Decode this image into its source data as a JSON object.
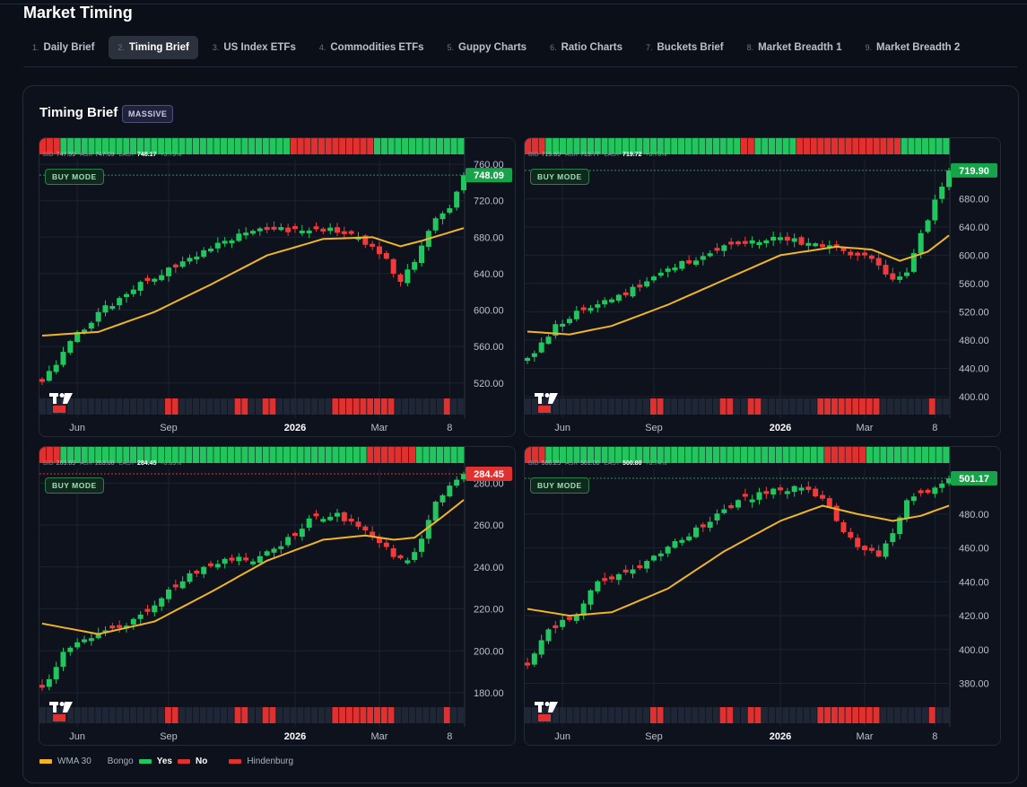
{
  "app": {
    "title": "Market Timing"
  },
  "tabs": [
    {
      "num": "1.",
      "label": "Daily Brief",
      "active": false
    },
    {
      "num": "2.",
      "label": "Timing Brief",
      "active": true
    },
    {
      "num": "3.",
      "label": "US Index ETFs",
      "active": false
    },
    {
      "num": "4.",
      "label": "Commodities ETFs",
      "active": false
    },
    {
      "num": "5.",
      "label": "Guppy Charts",
      "active": false
    },
    {
      "num": "6.",
      "label": "Ratio Charts",
      "active": false
    },
    {
      "num": "7.",
      "label": "Buckets Brief",
      "active": false
    },
    {
      "num": "8.",
      "label": "Market Breadth 1",
      "active": false
    },
    {
      "num": "9.",
      "label": "Market Breadth 2",
      "active": false
    }
  ],
  "panel": {
    "title": "Timing Brief",
    "badge": "MASSIVE"
  },
  "colors": {
    "up": "#22c55e",
    "down": "#ef3b3b",
    "wma": "#f0b429",
    "bongo_yes": "#22c55e",
    "bongo_no": "#e03131",
    "hindenburg": "#e03131",
    "strip_empty": "#1f2636"
  },
  "icons": {
    "tv_logo": "tradingview-logo-icon"
  },
  "legend": {
    "wma_label": "WMA 30",
    "bongo_label": "Bongo",
    "yes_label": "Yes",
    "no_label": "No",
    "hindenburg_label": "Hindenburg"
  },
  "chart_data": [
    {
      "type": "candlestick",
      "mode": "BUY MODE",
      "quote": {
        "bid_label": "BID",
        "bid": "747.59",
        "ask_label": "ASK",
        "ask": "747.69",
        "last_label": "LAST",
        "last": "748.17",
        "change": "+0.79%"
      },
      "last_price": 748.09,
      "last_price_label": "748.09",
      "last_price_color": "green",
      "ylim": [
        505,
        765
      ],
      "y_ticks": [
        "760.00",
        "720.00",
        "680.00",
        "640.00",
        "600.00",
        "560.00",
        "520.00"
      ],
      "x_ticks": [
        {
          "label": "Jun",
          "i": 5
        },
        {
          "label": "Sep",
          "i": 18
        },
        {
          "label": "2026",
          "i": 36,
          "bold": true
        },
        {
          "label": "Mar",
          "i": 48
        },
        {
          "label": "8",
          "i": 58
        }
      ],
      "anchors": [
        [
          0,
          520
        ],
        [
          4,
          566
        ],
        [
          8,
          597
        ],
        [
          14,
          628
        ],
        [
          20,
          652
        ],
        [
          27,
          680
        ],
        [
          32,
          688
        ],
        [
          38,
          690
        ],
        [
          42,
          686
        ],
        [
          46,
          675
        ],
        [
          49,
          655
        ],
        [
          51,
          632
        ],
        [
          53,
          652
        ],
        [
          55,
          690
        ],
        [
          58,
          715
        ],
        [
          60,
          747
        ]
      ],
      "wma_anchors": [
        [
          0,
          572
        ],
        [
          8,
          576
        ],
        [
          16,
          598
        ],
        [
          24,
          628
        ],
        [
          32,
          660
        ],
        [
          40,
          678
        ],
        [
          47,
          680
        ],
        [
          51,
          670
        ],
        [
          54,
          676
        ],
        [
          60,
          690
        ]
      ],
      "bongo_top": "RRRGGGGGGGGGGGGGGGGGGGGGGGGGGGGGGGGGRRRRRRRRRRRRGGGGGGGGGGGGG",
      "hindenburg_bottom": "..................RR........RR..RR........RRRRRRRRR.......R..R"
    },
    {
      "type": "candlestick",
      "mode": "BUY MODE",
      "quote": {
        "bid_label": "BID",
        "bid": "719.69",
        "ask_label": "ASK",
        "ask": "719.77",
        "last_label": "LAST",
        "last": "719.72",
        "change": "+0.70%"
      },
      "last_price": 719.9,
      "last_price_label": "719.90",
      "last_price_color": "green",
      "ylim": [
        400,
        735
      ],
      "y_ticks": [
        "680.00",
        "640.00",
        "600.00",
        "560.00",
        "520.00",
        "480.00",
        "440.00",
        "400.00"
      ],
      "x_ticks": [
        {
          "label": "Jun",
          "i": 5
        },
        {
          "label": "Sep",
          "i": 18
        },
        {
          "label": "2026",
          "i": 36,
          "bold": true
        },
        {
          "label": "Mar",
          "i": 48
        },
        {
          "label": "8",
          "i": 58
        }
      ],
      "anchors": [
        [
          0,
          450
        ],
        [
          4,
          500
        ],
        [
          8,
          525
        ],
        [
          14,
          548
        ],
        [
          20,
          580
        ],
        [
          26,
          605
        ],
        [
          30,
          618
        ],
        [
          36,
          622
        ],
        [
          40,
          618
        ],
        [
          44,
          610
        ],
        [
          47,
          600
        ],
        [
          50,
          590
        ],
        [
          52,
          563
        ],
        [
          54,
          580
        ],
        [
          56,
          630
        ],
        [
          58,
          675
        ],
        [
          60,
          718
        ]
      ],
      "wma_anchors": [
        [
          0,
          492
        ],
        [
          6,
          488
        ],
        [
          12,
          500
        ],
        [
          20,
          530
        ],
        [
          28,
          565
        ],
        [
          36,
          600
        ],
        [
          44,
          612
        ],
        [
          49,
          608
        ],
        [
          53,
          592
        ],
        [
          57,
          605
        ],
        [
          60,
          628
        ]
      ],
      "bongo_top": "RRRGGGGGGGGGGGGGGGGGGGGGGGGGGGGRRGGGGGGRRRRRRRRRRRRRRRGGGGGGG",
      "hindenburg_bottom": "..................RR........RR..RR........RRRRRRRRR.......R..R"
    },
    {
      "type": "candlestick",
      "mode": "BUY MODE",
      "quote": {
        "bid_label": "BID",
        "bid": "283.69",
        "ask_label": "ASK",
        "ask": "283.80",
        "last_label": "LAST",
        "last": "284.45",
        "change": "+0.63%"
      },
      "last_price": 284.45,
      "last_price_label": "284.45",
      "last_price_color": "red",
      "ylim": [
        174,
        287
      ],
      "y_ticks": [
        "280.00",
        "260.00",
        "240.00",
        "220.00",
        "200.00",
        "180.00"
      ],
      "x_ticks": [
        {
          "label": "Jun",
          "i": 5
        },
        {
          "label": "Sep",
          "i": 18
        },
        {
          "label": "2026",
          "i": 36,
          "bold": true
        },
        {
          "label": "Mar",
          "i": 48
        },
        {
          "label": "8",
          "i": 58
        }
      ],
      "anchors": [
        [
          0,
          183
        ],
        [
          4,
          203
        ],
        [
          8,
          207
        ],
        [
          12,
          212
        ],
        [
          16,
          222
        ],
        [
          20,
          234
        ],
        [
          25,
          243
        ],
        [
          30,
          244
        ],
        [
          35,
          253
        ],
        [
          38,
          262
        ],
        [
          42,
          265
        ],
        [
          46,
          258
        ],
        [
          50,
          245
        ],
        [
          52,
          242
        ],
        [
          54,
          255
        ],
        [
          56,
          272
        ],
        [
          58,
          278
        ],
        [
          60,
          284
        ]
      ],
      "wma_anchors": [
        [
          0,
          213
        ],
        [
          8,
          208
        ],
        [
          16,
          214
        ],
        [
          24,
          228
        ],
        [
          32,
          243
        ],
        [
          40,
          253
        ],
        [
          46,
          255
        ],
        [
          50,
          253
        ],
        [
          53,
          254
        ],
        [
          57,
          264
        ],
        [
          60,
          272
        ]
      ],
      "bongo_top": "RRRGGGGGGGGGGGGGGGGGGGGGGGGGGGGGGGGGGGGGGGGGGGGRRRRRRRGGGGGGG",
      "hindenburg_bottom": "..................RR........RR..RR........RRRRRRRRR.......R..R"
    },
    {
      "type": "candlestick",
      "mode": "BUY MODE",
      "quote": {
        "bid_label": "BID",
        "bid": "500.25",
        "ask_label": "ASK",
        "ask": "501.00",
        "last_label": "LAST",
        "last": "500.80",
        "change": "+0.74%"
      },
      "last_price": 501.17,
      "last_price_label": "501.17",
      "last_price_color": "green",
      "ylim": [
        367,
        507
      ],
      "y_ticks": [
        "480.00",
        "460.00",
        "440.00",
        "420.00",
        "400.00",
        "380.00"
      ],
      "x_ticks": [
        {
          "label": "Jun",
          "i": 5
        },
        {
          "label": "Sep",
          "i": 18
        },
        {
          "label": "2026",
          "i": 36,
          "bold": true
        },
        {
          "label": "Mar",
          "i": 48
        },
        {
          "label": "8",
          "i": 58
        }
      ],
      "anchors": [
        [
          0,
          390
        ],
        [
          3,
          411
        ],
        [
          7,
          421
        ],
        [
          10,
          440
        ],
        [
          14,
          445
        ],
        [
          18,
          455
        ],
        [
          22,
          465
        ],
        [
          26,
          477
        ],
        [
          30,
          488
        ],
        [
          34,
          493
        ],
        [
          38,
          496
        ],
        [
          42,
          490
        ],
        [
          45,
          470
        ],
        [
          48,
          458
        ],
        [
          50,
          456
        ],
        [
          52,
          470
        ],
        [
          54,
          490
        ],
        [
          57,
          494
        ],
        [
          60,
          500
        ]
      ],
      "wma_anchors": [
        [
          0,
          424
        ],
        [
          6,
          420
        ],
        [
          12,
          422
        ],
        [
          20,
          436
        ],
        [
          28,
          458
        ],
        [
          36,
          476
        ],
        [
          42,
          485
        ],
        [
          47,
          480
        ],
        [
          52,
          476
        ],
        [
          56,
          479
        ],
        [
          60,
          485
        ]
      ],
      "bongo_top": "RRRGGGGGGGGGGGGGGGGGGGGGGGGGGGGGGGGGGGGGGGGRRRRRRGGGGGGGGGGGG",
      "hindenburg_bottom": "..................RR........RR..RR........RRRRRRRRR.......R..R"
    }
  ]
}
